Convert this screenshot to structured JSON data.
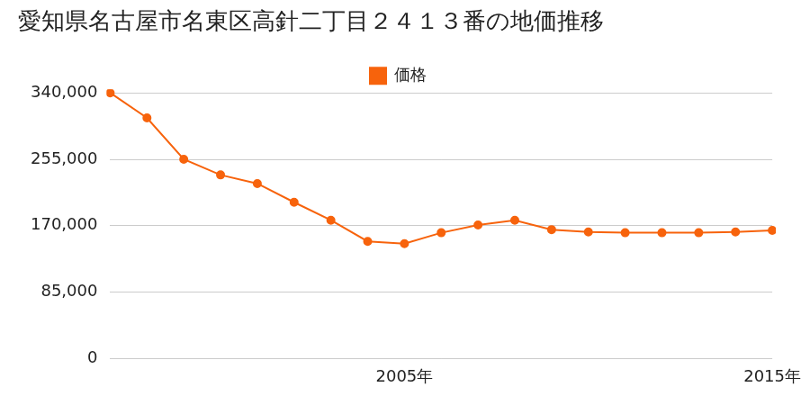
{
  "chart_data": {
    "type": "line",
    "title": "愛知県名古屋市名東区高針二丁目２４１３番の地価推移",
    "categories": [
      null,
      null,
      null,
      null,
      null,
      null,
      null,
      null,
      "2005年",
      null,
      null,
      null,
      null,
      null,
      null,
      null,
      null,
      null,
      "2015年"
    ],
    "series": [
      {
        "name": "価格",
        "color": "#f7630c",
        "marker": "circle",
        "values": [
          340000,
          308000,
          255000,
          235000,
          224000,
          200000,
          177000,
          150000,
          147000,
          161000,
          171000,
          177000,
          165000,
          162000,
          161000,
          161000,
          161000,
          162000,
          164000
        ]
      }
    ],
    "ylim": [
      0,
      340000
    ],
    "yticks": [
      0,
      {
        "value": 85000,
        "label": "85,000"
      },
      {
        "value": 170000,
        "label": "170,000"
      },
      {
        "value": 255000,
        "label": "255,000"
      },
      {
        "value": 340000,
        "label": "340,000"
      }
    ],
    "grid": true,
    "legend": "top"
  }
}
